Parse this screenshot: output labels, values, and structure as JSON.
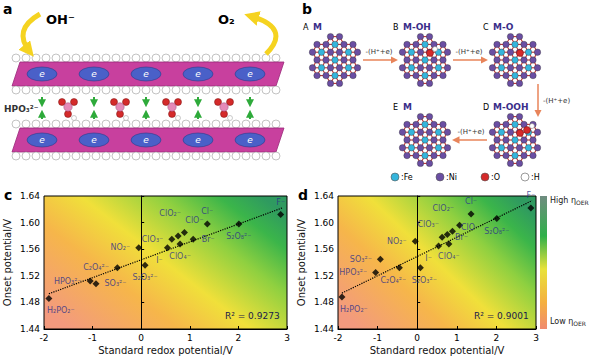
{
  "panel_a": {
    "label": "a",
    "reactant": "OH⁻",
    "product": "O₂",
    "intercalant": "HPO₃²⁻",
    "electron": "e"
  },
  "panel_b": {
    "label": "b",
    "states": [
      {
        "letter": "A",
        "name": "M"
      },
      {
        "letter": "B",
        "name": "M-OH"
      },
      {
        "letter": "C",
        "name": "M-O"
      },
      {
        "letter": "D",
        "name": "M-OOH"
      },
      {
        "letter": "E",
        "name": "M"
      }
    ],
    "step": "-(H⁺+e)",
    "elements": [
      {
        "text": ":Fe",
        "color": "#35b5dc"
      },
      {
        "text": ":Ni",
        "color": "#6a4ea3"
      },
      {
        "text": ":O",
        "color": "#d42a2a"
      },
      {
        "text": ":H",
        "color": "#ffffff"
      }
    ]
  },
  "chart_data": [
    {
      "type": "scatter",
      "title": "c",
      "x_label": "Standard redox potential/V",
      "y_label": "Onset potential/V",
      "labels": [
        "H₂PO₂⁻",
        "HPO₃²⁻",
        "SO₃²⁻",
        "C₂O₄²⁻",
        "S₂O₃²⁻",
        "NO₂⁻",
        "I⁻",
        "ClO₃⁻",
        "ClO₂⁻",
        "ClO⁻",
        "ClO₄⁻",
        "Br⁻",
        "Cl⁻",
        "S₂O₈²⁻",
        "F⁻"
      ],
      "x": [
        -1.9,
        -1.05,
        -0.93,
        -0.49,
        0.08,
        -0.05,
        0.54,
        0.63,
        0.76,
        0.89,
        0.8,
        1.07,
        1.36,
        2.01,
        2.87
      ],
      "values": [
        1.486,
        1.512,
        1.508,
        1.532,
        1.536,
        1.562,
        1.562,
        1.575,
        1.58,
        1.585,
        1.568,
        1.575,
        1.598,
        1.598,
        1.612
      ],
      "color": "#000000",
      "marker": "diamond",
      "fit": {
        "x": [
          -1.9,
          2.9
        ],
        "y": [
          1.493,
          1.622
        ],
        "line_style": "dotted"
      },
      "annotation": "R² = 0.9273",
      "xlim": [
        -2,
        3
      ],
      "xticks": [
        -2,
        -1,
        0,
        1,
        2,
        3
      ],
      "ylim": [
        1.44,
        1.64
      ],
      "yticks": [
        1.44,
        1.48,
        1.52,
        1.56,
        {
          "value": 1.6,
          "label": "1.60"
        },
        1.64
      ],
      "grid": false
    },
    {
      "type": "scatter",
      "title": "d",
      "x_label": "Standard redox potential/V",
      "y_label": "Onset potential/V",
      "labels": [
        "H₂PO₂⁻",
        "HPO₃²⁻",
        "SO₃²⁻",
        "C₂O₄²⁻",
        "S₂O₃²⁻",
        "NO₂⁻",
        "I⁻",
        "ClO₃⁻",
        "ClO₂⁻",
        "ClO⁻",
        "ClO₄⁻",
        "Br⁻",
        "Cl⁻",
        "S₂O₈²⁻",
        "F⁻"
      ],
      "x": [
        -1.9,
        -1.05,
        -0.93,
        -0.45,
        0.08,
        -0.05,
        0.54,
        0.63,
        0.76,
        0.89,
        0.8,
        1.07,
        1.36,
        2.01,
        2.87
      ],
      "values": [
        1.488,
        1.525,
        1.545,
        1.532,
        1.532,
        1.572,
        1.565,
        1.578,
        1.582,
        1.587,
        1.568,
        1.596,
        1.613,
        1.606,
        1.622
      ],
      "color": "#000000",
      "marker": "diamond",
      "fit": {
        "x": [
          -1.9,
          2.9
        ],
        "y": [
          1.494,
          1.633
        ],
        "line_style": "dotted"
      },
      "annotation": "R² = 0.9001",
      "xlim": [
        -2,
        3
      ],
      "xticks": [
        -2,
        -1,
        0,
        1,
        2,
        3
      ],
      "ylim": [
        1.44,
        1.64
      ],
      "yticks": [
        1.44,
        1.48,
        1.52,
        1.56,
        {
          "value": 1.6,
          "label": "1.60"
        },
        1.64
      ],
      "grid": false,
      "colorbar": {
        "labels": [
          {
            "text": "High η",
            "sub": "OER"
          },
          {
            "text": "Low η",
            "sub": "OER"
          }
        ]
      }
    }
  ]
}
